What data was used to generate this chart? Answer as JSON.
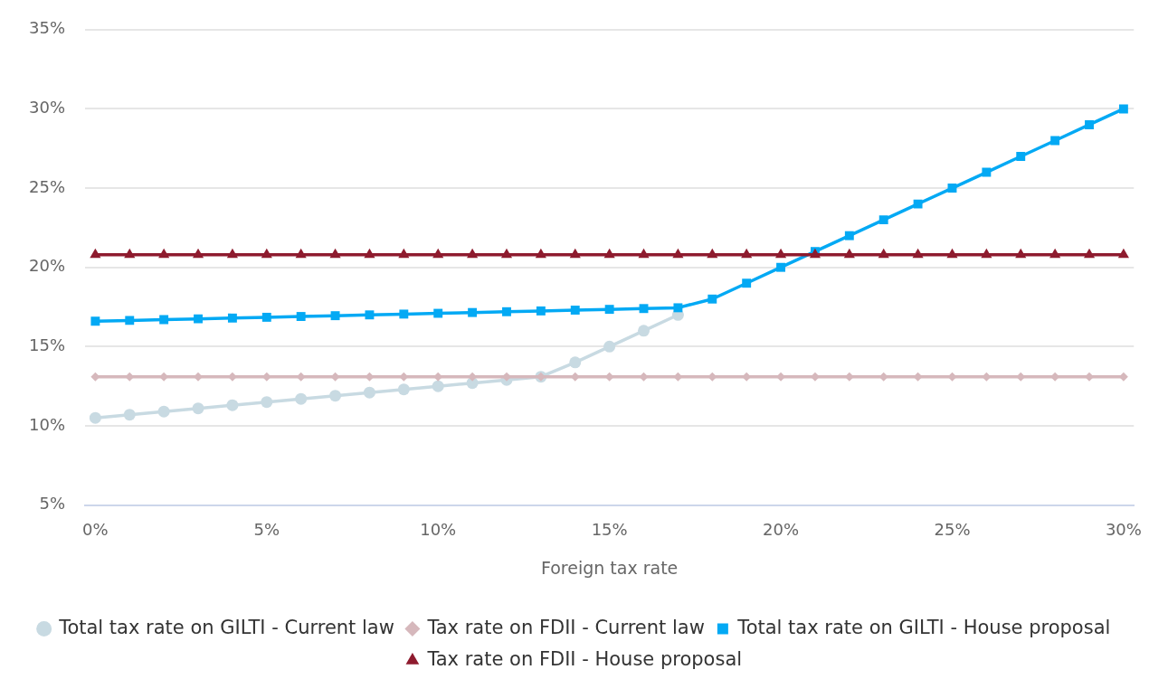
{
  "chart_data": {
    "type": "line",
    "xlabel": "Foreign tax rate",
    "x": [
      0,
      1,
      2,
      3,
      4,
      5,
      6,
      7,
      8,
      9,
      10,
      11,
      12,
      13,
      14,
      15,
      16,
      17,
      18,
      19,
      20,
      21,
      22,
      23,
      24,
      25,
      26,
      27,
      28,
      29,
      30
    ],
    "series": [
      {
        "name": "Total tax rate on GILTI - Current law",
        "color": "#c8dae2",
        "marker": "circle",
        "values": [
          10.5,
          10.7,
          10.9,
          11.1,
          11.3,
          11.5,
          11.7,
          11.9,
          12.1,
          12.3,
          12.5,
          12.7,
          12.9,
          13.1,
          14,
          15,
          16,
          17,
          null,
          null,
          null,
          null,
          null,
          null,
          null,
          null,
          null,
          null,
          null,
          null,
          null
        ]
      },
      {
        "name": "Tax rate on FDII - Current law",
        "color": "#d6b8bc",
        "marker": "diamond",
        "values": [
          13.1,
          13.1,
          13.1,
          13.1,
          13.1,
          13.1,
          13.1,
          13.1,
          13.1,
          13.1,
          13.1,
          13.1,
          13.1,
          13.1,
          13.1,
          13.1,
          13.1,
          13.1,
          13.1,
          13.1,
          13.1,
          13.1,
          13.1,
          13.1,
          13.1,
          13.1,
          13.1,
          13.1,
          13.1,
          13.1,
          13.1
        ]
      },
      {
        "name": "Total tax rate on GILTI - House proposal",
        "color": "#03a9f4",
        "marker": "square",
        "values": [
          16.6,
          16.65,
          16.7,
          16.75,
          16.8,
          16.85,
          16.9,
          16.95,
          17,
          17.05,
          17.1,
          17.15,
          17.2,
          17.25,
          17.3,
          17.35,
          17.4,
          17.45,
          18,
          19,
          20,
          21,
          22,
          23,
          24,
          25,
          26,
          27,
          28,
          29,
          30
        ]
      },
      {
        "name": "Tax rate on FDII - House proposal",
        "color": "#8e1b2e",
        "marker": "triangle",
        "values": [
          20.8,
          20.8,
          20.8,
          20.8,
          20.8,
          20.8,
          20.8,
          20.8,
          20.8,
          20.8,
          20.8,
          20.8,
          20.8,
          20.8,
          20.8,
          20.8,
          20.8,
          20.8,
          20.8,
          20.8,
          20.8,
          20.8,
          20.8,
          20.8,
          20.8,
          20.8,
          20.8,
          20.8,
          20.8,
          20.8,
          20.8
        ]
      }
    ],
    "xlim": [
      -0.3,
      30.3
    ],
    "xticks": [
      {
        "value": 0,
        "label": "0%"
      },
      {
        "value": 5,
        "label": "5%"
      },
      {
        "value": 10,
        "label": "10%"
      },
      {
        "value": 15,
        "label": "15%"
      },
      {
        "value": 20,
        "label": "20%"
      },
      {
        "value": 25,
        "label": "25%"
      },
      {
        "value": 30,
        "label": "30%"
      }
    ],
    "ylim": [
      5,
      35
    ],
    "yticks": [
      {
        "value": 5,
        "label": "5%"
      },
      {
        "value": 10,
        "label": "10%"
      },
      {
        "value": 15,
        "label": "15%"
      },
      {
        "value": 20,
        "label": "20%"
      },
      {
        "value": 25,
        "label": "25%"
      },
      {
        "value": 30,
        "label": "30%"
      },
      {
        "value": 35,
        "label": "35%"
      }
    ],
    "grid": "y",
    "legend": "bottom",
    "line_style": "solid"
  }
}
